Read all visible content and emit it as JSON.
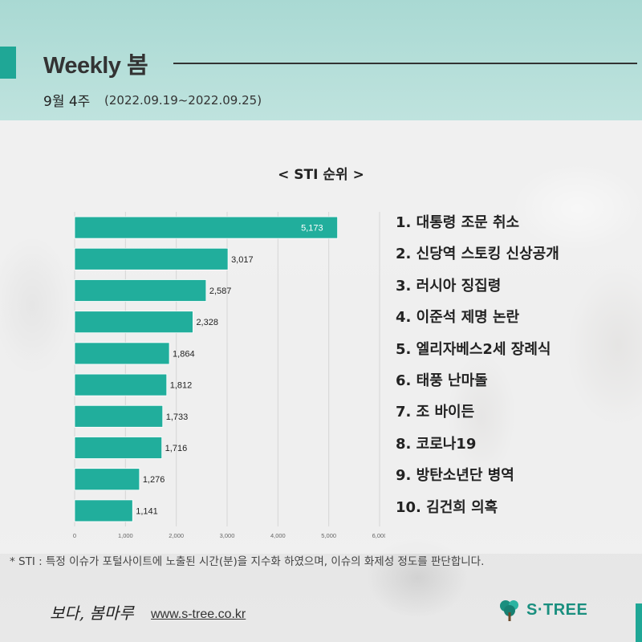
{
  "header": {
    "title": "Weekly 봄",
    "week_label": "9월 4주",
    "date_range": "(2022.09.19~2022.09.25)"
  },
  "chart_heading": "< STI 순위 >",
  "ranking": [
    "1. 대통령 조문 취소",
    "2. 신당역 스토킹 신상공개",
    "3. 러시아 징집령",
    "4. 이준석 제명 논란",
    "5. 엘리자베스2세 장례식",
    "6. 태풍 난마돌",
    "7. 조 바이든",
    "8. 코로나19",
    "9. 방탄소년단 병역",
    "10. 김건희 의혹"
  ],
  "chart_data": {
    "type": "bar",
    "orientation": "horizontal",
    "categories": [
      "1",
      "2",
      "3",
      "4",
      "5",
      "6",
      "7",
      "8",
      "9",
      "10"
    ],
    "values": [
      5173,
      3017,
      2587,
      2328,
      1864,
      1812,
      1733,
      1716,
      1276,
      1141
    ],
    "value_labels": [
      "5,173",
      "3,017",
      "2,587",
      "2,328",
      "1,864",
      "1,812",
      "1,733",
      "1,716",
      "1,276",
      "1,141"
    ],
    "xlim": [
      0,
      6000
    ],
    "xticks": [
      0,
      1000,
      2000,
      3000,
      4000,
      5000,
      6000
    ],
    "xtick_labels": [
      "0",
      "1,000",
      "2,000",
      "3,000",
      "4,000",
      "5,000",
      "6,000"
    ],
    "grid": true,
    "bar_color": "#21ae9c"
  },
  "footnote": "* STI : 특정 이슈가 포털사이트에 노출된 시간(분)을 지수화 하였으며, 이슈의 화제성 정도를 판단합니다.",
  "footer": {
    "logo_text": "보다, 봄마루",
    "url": "www.s-tree.co.kr",
    "brand": "S·TREE",
    "brand_icon": "tree-icon"
  },
  "colors": {
    "accent": "#1fa796",
    "header_bg": "#b3ddd7",
    "brand": "#1a8f7f"
  }
}
